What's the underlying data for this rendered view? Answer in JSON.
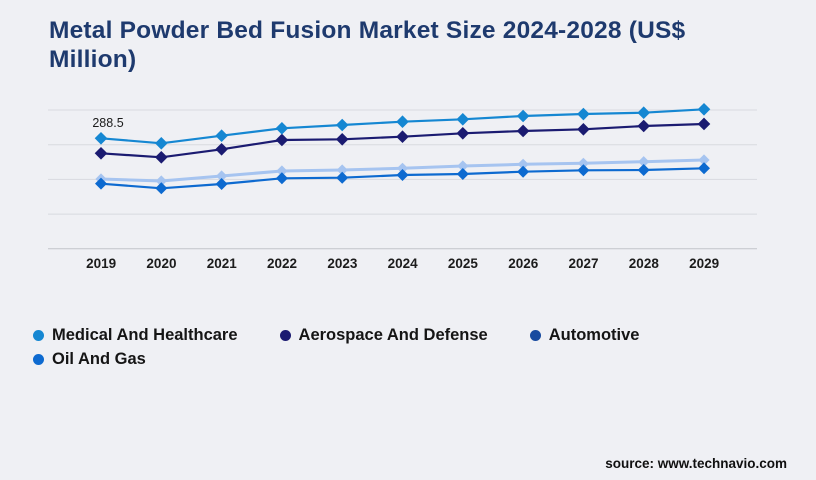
{
  "page": {
    "background": "#eff0f4"
  },
  "header": {
    "title": "Metal Powder Bed Fusion Market Size 2024-2028 (US$ Million)",
    "title_lines": [
      "Metal Powder Bed Fusion Market Size 2024-2028 (US$",
      "Million)"
    ],
    "title_color": "#1e3a6e"
  },
  "source": {
    "label": "source: www.technavio.com"
  },
  "chart_data": {
    "type": "line",
    "title": "Metal Powder Bed Fusion Market Size 2024-2028 (US$ Million)",
    "categories": [
      "2019",
      "2020",
      "2021",
      "2022",
      "2023",
      "2024",
      "2025",
      "2026",
      "2027",
      "2028",
      "2029"
    ],
    "series": [
      {
        "name": "Medical And Healthcare",
        "color": "#1587d2",
        "values": [
          288.5,
          275.5,
          295.3,
          314.6,
          323.2,
          331.8,
          338.1,
          346.7,
          351.9,
          355.3,
          364.2
        ]
      },
      {
        "name": "Aerospace And Defense",
        "color": "#1b1b71",
        "values": [
          249.4,
          238.9,
          259.8,
          284.1,
          285.9,
          292.7,
          301.6,
          307.6,
          312.0,
          320.6,
          325.9
        ]
      },
      {
        "name": "Automotive",
        "color": "#a6c4f0",
        "legend_color": "#174a9f",
        "values": [
          182.2,
          177.0,
          190.1,
          203.1,
          205.8,
          210.2,
          216.2,
          220.6,
          223.2,
          227.4,
          231.8
        ]
      },
      {
        "name": "Oil And Gas",
        "color": "#0d6ad0",
        "values": [
          170.0,
          158.0,
          169.2,
          184.1,
          185.6,
          192.7,
          195.3,
          201.3,
          205.0,
          205.8,
          210.2
        ]
      }
    ],
    "annotation": {
      "text": "288.5",
      "series": "Medical And Healthcare",
      "category": "2019"
    },
    "marker": "diamond",
    "grid": "horizontal",
    "y_axis_labels_visible": false,
    "ylim": [
      0,
      390
    ],
    "legend_position": "bottom-left",
    "colors": {
      "gridline": "#d8dadf",
      "axis_line": "#c2c4c9",
      "label_text": "#1b1b1b"
    }
  }
}
